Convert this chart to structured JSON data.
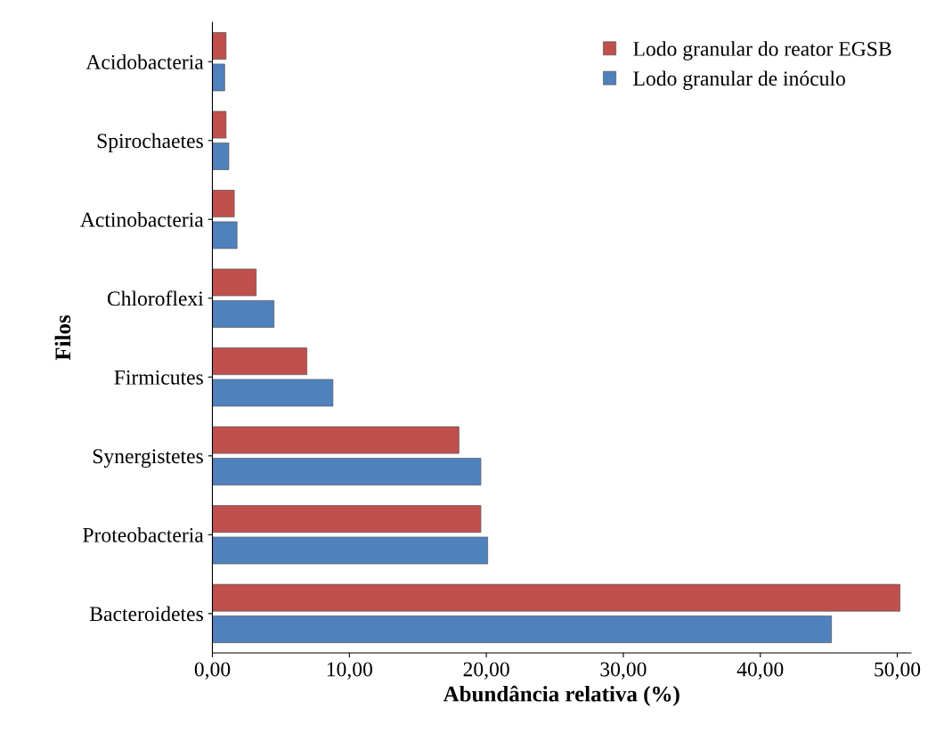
{
  "chart_data": {
    "type": "bar",
    "orientation": "horizontal",
    "xlabel": "Abundância relativa (%)",
    "ylabel": "Filos",
    "categories": [
      "Acidobacteria",
      "Spirochaetes",
      "Actinobacteria",
      "Chloroflexi",
      "Firmicutes",
      "Synergistetes",
      "Proteobacteria",
      "Bacteroidetes"
    ],
    "series": [
      {
        "name": "Lodo granular do reator EGSB",
        "color": "#c0504d",
        "values": [
          1.0,
          1.0,
          1.6,
          3.2,
          6.9,
          18.0,
          19.6,
          50.2
        ]
      },
      {
        "name": "Lodo granular de inóculo",
        "color": "#4f81bd",
        "values": [
          0.9,
          1.2,
          1.8,
          4.5,
          8.8,
          19.6,
          20.1,
          45.2
        ]
      }
    ],
    "xlim": [
      0,
      51
    ],
    "xticks": [
      {
        "value": 0,
        "label": "0,00"
      },
      {
        "value": 10,
        "label": "10,00"
      },
      {
        "value": 20,
        "label": "20,00"
      },
      {
        "value": 30,
        "label": "30,00"
      },
      {
        "value": 40,
        "label": "40,00"
      },
      {
        "value": 50,
        "label": "50,00"
      }
    ],
    "grid": false,
    "legend": "top right"
  }
}
